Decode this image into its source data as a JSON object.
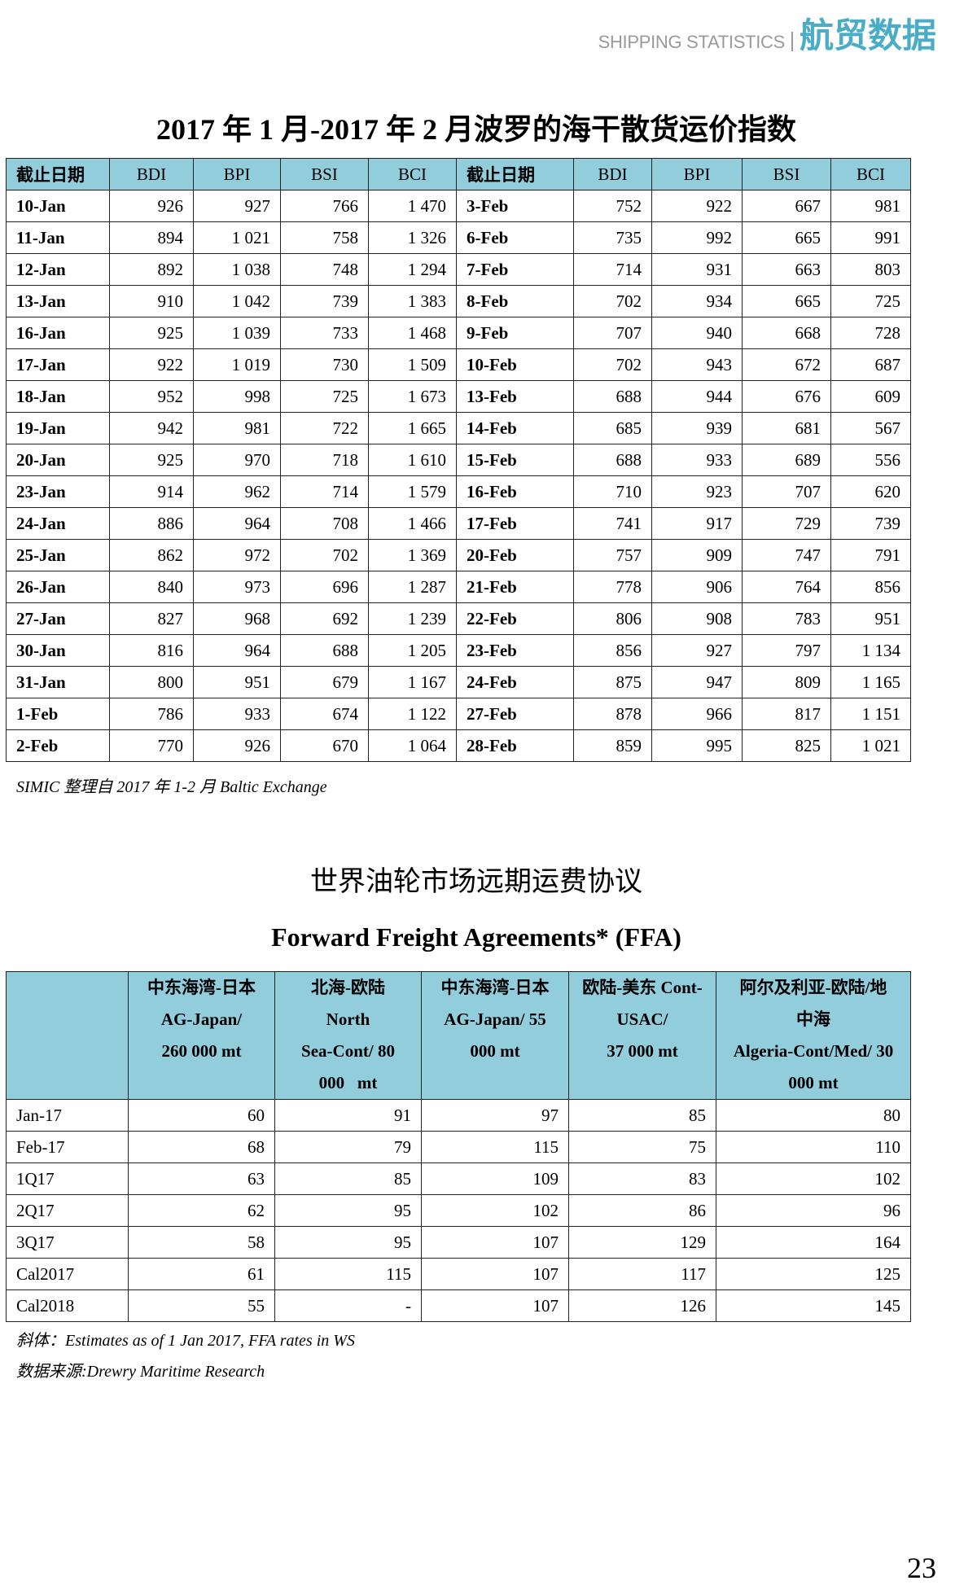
{
  "header": {
    "section_en": "SHIPPING STATISTICS",
    "section_cn": "航贸数据"
  },
  "bdi": {
    "title": "2017 年 1 月-2017 年 2 月波罗的海干散货运价指数",
    "columns": [
      "截止日期",
      "BDI",
      "BPI",
      "BSI",
      "BCI",
      "截止日期",
      "BDI",
      "BPI",
      "BSI",
      "BCI"
    ],
    "rows": [
      [
        "10-Jan",
        "926",
        "927",
        "766",
        "1 470",
        "3-Feb",
        "752",
        "922",
        "667",
        "981"
      ],
      [
        "11-Jan",
        "894",
        "1 021",
        "758",
        "1 326",
        "6-Feb",
        "735",
        "992",
        "665",
        "991"
      ],
      [
        "12-Jan",
        "892",
        "1 038",
        "748",
        "1 294",
        "7-Feb",
        "714",
        "931",
        "663",
        "803"
      ],
      [
        "13-Jan",
        "910",
        "1 042",
        "739",
        "1 383",
        "8-Feb",
        "702",
        "934",
        "665",
        "725"
      ],
      [
        "16-Jan",
        "925",
        "1 039",
        "733",
        "1 468",
        "9-Feb",
        "707",
        "940",
        "668",
        "728"
      ],
      [
        "17-Jan",
        "922",
        "1 019",
        "730",
        "1 509",
        "10-Feb",
        "702",
        "943",
        "672",
        "687"
      ],
      [
        "18-Jan",
        "952",
        "998",
        "725",
        "1 673",
        "13-Feb",
        "688",
        "944",
        "676",
        "609"
      ],
      [
        "19-Jan",
        "942",
        "981",
        "722",
        "1 665",
        "14-Feb",
        "685",
        "939",
        "681",
        "567"
      ],
      [
        "20-Jan",
        "925",
        "970",
        "718",
        "1 610",
        "15-Feb",
        "688",
        "933",
        "689",
        "556"
      ],
      [
        "23-Jan",
        "914",
        "962",
        "714",
        "1 579",
        "16-Feb",
        "710",
        "923",
        "707",
        "620"
      ],
      [
        "24-Jan",
        "886",
        "964",
        "708",
        "1 466",
        "17-Feb",
        "741",
        "917",
        "729",
        "739"
      ],
      [
        "25-Jan",
        "862",
        "972",
        "702",
        "1 369",
        "20-Feb",
        "757",
        "909",
        "747",
        "791"
      ],
      [
        "26-Jan",
        "840",
        "973",
        "696",
        "1 287",
        "21-Feb",
        "778",
        "906",
        "764",
        "856"
      ],
      [
        "27-Jan",
        "827",
        "968",
        "692",
        "1 239",
        "22-Feb",
        "806",
        "908",
        "783",
        "951"
      ],
      [
        "30-Jan",
        "816",
        "964",
        "688",
        "1 205",
        "23-Feb",
        "856",
        "927",
        "797",
        "1 134"
      ],
      [
        "31-Jan",
        "800",
        "951",
        "679",
        "1 167",
        "24-Feb",
        "875",
        "947",
        "809",
        "1 165"
      ],
      [
        "1-Feb",
        "786",
        "933",
        "674",
        "1 122",
        "27-Feb",
        "878",
        "966",
        "817",
        "1 151"
      ],
      [
        "2-Feb",
        "770",
        "926",
        "670",
        "1 064",
        "28-Feb",
        "859",
        "995",
        "825",
        "1 021"
      ]
    ],
    "source": "SIMIC 整理自 2017 年 1-2 月 Baltic Exchange"
  },
  "ffa": {
    "title_cn": "世界油轮市场远期运费协议",
    "title_en": "Forward Freight Agreements* (FFA)",
    "columns": [
      "",
      "中东海湾-日本\nAG-Japan/\n260 000 mt",
      "北海-欧陆\nNorth\nSea-Cont/ 80\n000   mt",
      "中东海湾-日本\nAG-Japan/ 55\n000 mt",
      "欧陆-美东 Cont-\nUSAC/\n37 000 mt",
      "阿尔及利亚-欧陆/地\n中海\nAlgeria-Cont/Med/ 30\n000 mt"
    ],
    "rows": [
      [
        "Jan-17",
        "60",
        "91",
        "97",
        "85",
        "80"
      ],
      [
        "Feb-17",
        "68",
        "79",
        "115",
        "75",
        "110"
      ],
      [
        "1Q17",
        "63",
        "85",
        "109",
        "83",
        "102"
      ],
      [
        "2Q17",
        "62",
        "95",
        "102",
        "86",
        "96"
      ],
      [
        "3Q17",
        "58",
        "95",
        "107",
        "129",
        "164"
      ],
      [
        "Cal2017",
        "61",
        "115",
        "107",
        "117",
        "125"
      ],
      [
        "Cal2018",
        "55",
        "-",
        "107",
        "126",
        "145"
      ]
    ],
    "note": "斜体：Estimates as of 1 Jan 2017, FFA rates in WS",
    "source": "数据来源:Drewry Maritime Research"
  },
  "page_number": "23",
  "colors": {
    "header_fill": "#92cddc",
    "brand": "#4bacc6"
  }
}
